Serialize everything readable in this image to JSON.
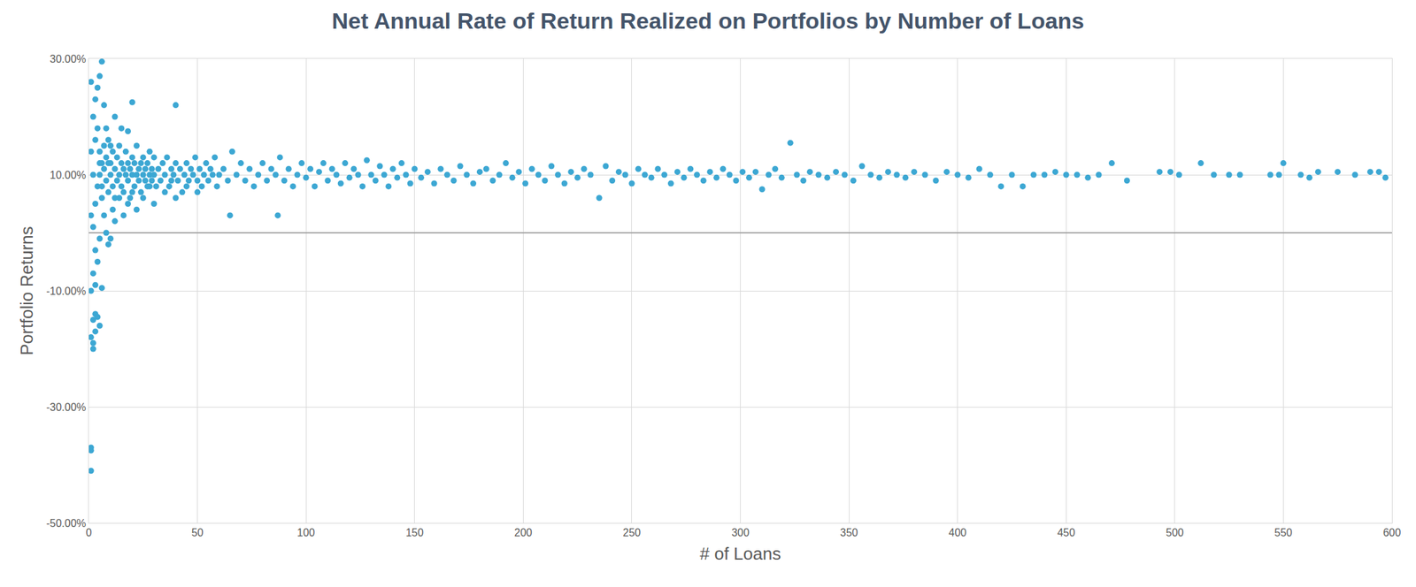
{
  "chart_data": {
    "type": "scatter",
    "title": "Net Annual Rate of Return Realized on Portfolios by Number of Loans",
    "x_label": "# of Loans",
    "y_label": "Portfolio Returns",
    "color": "#3ca7d3",
    "marker": "circle",
    "grid": true,
    "xlim": [
      0,
      600
    ],
    "xticks": [
      0,
      50,
      100,
      150,
      200,
      250,
      300,
      350,
      400,
      450,
      500,
      550,
      600
    ],
    "ylim": [
      -50,
      30
    ],
    "yticks": [
      {
        "value": -50,
        "label": "-50.00%"
      },
      {
        "value": -30,
        "label": "-30.00%"
      },
      {
        "value": -10,
        "label": "-10.00%"
      },
      {
        "value": 10,
        "label": "10.00%"
      },
      {
        "value": 30,
        "label": "30.00%"
      }
    ],
    "x": [
      1,
      1,
      1,
      2,
      2,
      1,
      3,
      2,
      3,
      4,
      5,
      1,
      3,
      6,
      2,
      4,
      3,
      5,
      2,
      1,
      3,
      4,
      2,
      5,
      1,
      3,
      4,
      2,
      3,
      4,
      5,
      6,
      1,
      7,
      8,
      10,
      12,
      20,
      40,
      15,
      18,
      9,
      6,
      7,
      8,
      10,
      12,
      9,
      11,
      14,
      16,
      18,
      20,
      22,
      25,
      28,
      30,
      35,
      38,
      40,
      45,
      50,
      65,
      87,
      5,
      5,
      6,
      6,
      7,
      7,
      8,
      8,
      9,
      9,
      10,
      10,
      11,
      11,
      12,
      12,
      13,
      13,
      14,
      14,
      15,
      15,
      16,
      16,
      17,
      17,
      18,
      18,
      19,
      19,
      20,
      20,
      21,
      21,
      22,
      22,
      23,
      23,
      24,
      24,
      25,
      25,
      26,
      26,
      27,
      27,
      28,
      28,
      29,
      29,
      30,
      30,
      31,
      32,
      33,
      34,
      35,
      36,
      37,
      38,
      39,
      40,
      41,
      42,
      43,
      44,
      45,
      46,
      47,
      48,
      49,
      50,
      51,
      52,
      53,
      54,
      55,
      56,
      57,
      58,
      59,
      60,
      62,
      64,
      66,
      68,
      70,
      72,
      74,
      76,
      78,
      80,
      82,
      84,
      86,
      88,
      90,
      92,
      94,
      96,
      98,
      100,
      102,
      104,
      106,
      108,
      110,
      112,
      114,
      116,
      118,
      120,
      122,
      124,
      126,
      128,
      130,
      132,
      134,
      136,
      138,
      140,
      142,
      144,
      146,
      148,
      150,
      153,
      156,
      159,
      162,
      165,
      168,
      171,
      174,
      177,
      180,
      183,
      186,
      189,
      192,
      195,
      198,
      201,
      204,
      207,
      210,
      213,
      216,
      219,
      222,
      225,
      228,
      231,
      235,
      238,
      241,
      244,
      247,
      250,
      253,
      256,
      259,
      262,
      265,
      268,
      271,
      274,
      277,
      280,
      283,
      286,
      289,
      292,
      295,
      298,
      301,
      304,
      307,
      310,
      313,
      316,
      319,
      323,
      326,
      329,
      332,
      336,
      340,
      344,
      348,
      352,
      356,
      360,
      364,
      368,
      372,
      376,
      380,
      385,
      390,
      395,
      400,
      405,
      410,
      415,
      420,
      425,
      430,
      435,
      440,
      445,
      450,
      455,
      460,
      465,
      471,
      478,
      493,
      498,
      502,
      512,
      518,
      525,
      530,
      544,
      548,
      550,
      558,
      562,
      566,
      575,
      583,
      590,
      594,
      597
    ],
    "values": [
      -41,
      -37,
      -37.5,
      -20,
      -19,
      -18,
      -17,
      -15,
      -14,
      -14.5,
      -16,
      -10,
      -9,
      -9.5,
      -7,
      -5,
      -3,
      -1,
      1,
      3,
      5,
      8,
      10,
      12,
      14,
      16,
      18,
      20,
      23,
      25,
      27,
      29.5,
      26,
      22,
      18,
      15,
      20,
      22.5,
      22,
      18,
      17.5,
      12,
      6,
      3,
      0,
      -1,
      2,
      -2,
      4,
      6,
      3,
      5,
      7,
      4,
      6,
      8,
      5,
      7,
      9,
      6,
      8,
      7,
      3,
      3,
      10,
      14,
      8,
      12,
      11,
      15,
      9,
      13,
      7,
      16,
      10,
      12,
      8,
      14,
      11,
      6,
      9,
      13,
      10,
      15,
      8,
      12,
      11,
      7,
      10,
      14,
      9,
      12,
      11,
      6,
      10,
      13,
      8,
      12,
      10,
      15,
      9,
      11,
      12,
      7,
      10,
      13,
      9,
      11,
      12,
      8,
      10,
      14,
      9,
      11,
      10,
      13,
      8,
      11,
      9,
      12,
      10,
      13,
      8,
      11,
      10,
      12,
      9,
      11,
      7,
      10,
      12,
      9,
      11,
      10,
      13,
      9,
      11,
      8,
      10,
      12,
      9,
      11,
      10,
      13,
      8,
      10,
      11,
      9,
      14,
      10,
      12,
      9,
      11,
      8,
      10,
      12,
      9,
      11,
      10,
      13,
      9,
      11,
      8,
      10,
      12,
      9.5,
      11,
      8,
      10.5,
      12,
      9,
      11,
      10,
      8.5,
      12,
      9.5,
      11,
      10,
      8,
      12.5,
      10,
      9,
      11.5,
      10,
      8,
      11,
      9.5,
      12,
      10,
      8.5,
      11,
      9.5,
      10.5,
      8.5,
      11,
      10,
      9,
      11.5,
      10,
      8.5,
      10.5,
      11,
      9,
      10,
      12,
      9.5,
      10.5,
      8.5,
      11,
      10,
      9,
      11.5,
      10,
      8.5,
      10.5,
      9.5,
      11,
      10,
      6,
      11.5,
      9,
      10.5,
      10,
      8.5,
      11,
      10,
      9.5,
      11,
      10,
      8.5,
      10.5,
      9.5,
      11,
      10,
      9,
      10.5,
      9.5,
      11,
      10,
      9,
      10.5,
      9.5,
      10.5,
      7.5,
      10,
      11,
      9.5,
      15.5,
      10,
      9,
      10.5,
      10,
      9.5,
      10.5,
      10,
      9,
      11.5,
      10,
      9.5,
      10.5,
      10,
      9.5,
      10.5,
      10,
      9,
      10.5,
      10,
      9.5,
      11,
      10,
      8,
      10,
      8,
      10,
      10,
      10.5,
      10,
      10,
      9.5,
      10,
      12,
      9,
      10.5,
      10.5,
      10,
      12,
      10,
      10,
      10,
      10,
      10,
      12,
      10,
      9.5,
      10.5,
      10.5,
      10,
      10.5,
      10.5,
      9.5
    ]
  }
}
